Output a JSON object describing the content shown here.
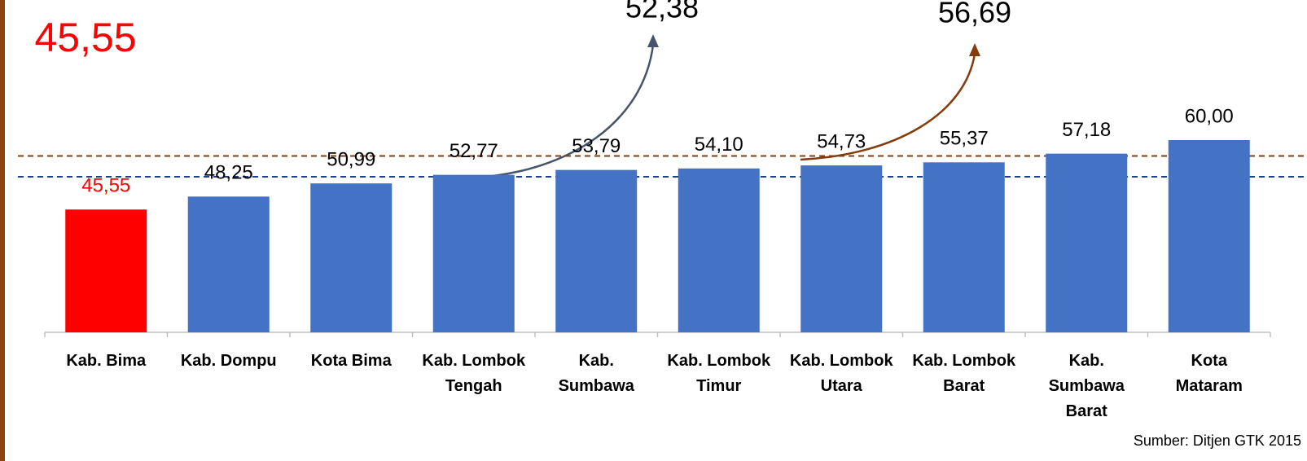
{
  "chart_data": {
    "type": "bar",
    "highlight_label": "45,55",
    "categories": [
      "Kab. Bima",
      "Kab. Dompu",
      "Kota Bima",
      "Kab. Lombok\nTengah",
      "Kab.\nSumbawa",
      "Kab. Lombok\nTimur",
      "Kab. Lombok\nUtara",
      "Kab. Lombok\nBarat",
      "Kab.\nSumbawa\nBarat",
      "Kota\nMataram"
    ],
    "values": [
      45.55,
      48.25,
      50.99,
      52.77,
      53.79,
      54.1,
      54.73,
      55.37,
      57.18,
      60.0
    ],
    "value_labels": [
      "45,55",
      "48,25",
      "50,99",
      "52,77",
      "53,79",
      "54,10",
      "54,73",
      "55,37",
      "57,18",
      "60,00"
    ],
    "colors": [
      "#ff0000",
      "#4472c4",
      "#4472c4",
      "#4472c4",
      "#4472c4",
      "#4472c4",
      "#4472c4",
      "#4472c4",
      "#4472c4",
      "#4472c4"
    ],
    "ylim": [
      20,
      80
    ],
    "reference_lines": [
      {
        "value": 52.38,
        "label": "52,38",
        "color": "#1f3e8c"
      },
      {
        "value": 56.69,
        "label": "56,69",
        "color": "#843c0c"
      }
    ],
    "source": "Sumber: Ditjen GTK 2015"
  }
}
